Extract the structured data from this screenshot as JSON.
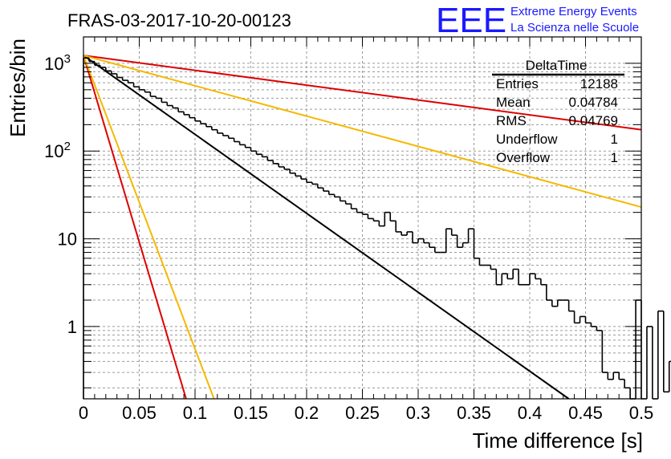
{
  "chart_data": {
    "type": "histogram",
    "title": "FRAS-03-2017-10-20-00123",
    "xlabel": "Time difference [s]",
    "ylabel": "Entries/bin",
    "xlim": [
      0,
      0.5
    ],
    "ylim": [
      0.15,
      2000
    ],
    "yscale": "log",
    "grid": true,
    "x_ticks": [
      "0",
      "0.05",
      "0.1",
      "0.15",
      "0.2",
      "0.25",
      "0.3",
      "0.35",
      "0.4",
      "0.45",
      "0.5"
    ],
    "y_ticks": [
      {
        "base": "10",
        "exp": "3",
        "value": 1000
      },
      {
        "base": "10",
        "exp": "2",
        "value": 100
      },
      {
        "base": "10",
        "exp": "",
        "value": 10
      },
      {
        "base": "1",
        "exp": "",
        "value": 1
      }
    ],
    "bin_width": 0.005,
    "histogram_values": [
      1150,
      1050,
      950,
      900,
      820,
      760,
      690,
      640,
      600,
      540,
      500,
      470,
      420,
      400,
      360,
      330,
      310,
      280,
      260,
      240,
      220,
      205,
      190,
      175,
      160,
      150,
      140,
      128,
      118,
      110,
      100,
      92,
      86,
      78,
      72,
      66,
      62,
      56,
      52,
      48,
      44,
      42,
      38,
      35,
      32,
      30,
      27,
      25,
      22,
      20,
      19,
      17,
      16,
      14,
      20,
      16,
      12,
      11,
      12,
      9,
      10,
      9,
      8,
      7,
      7,
      13,
      11,
      8,
      9,
      13,
      6,
      5,
      5,
      4.5,
      3,
      4,
      3.5,
      4.5,
      3,
      3,
      4,
      3.5,
      3,
      2,
      1.7,
      2,
      2,
      1.5,
      1.1,
      1.3,
      1.1,
      1,
      0.9,
      0.3,
      0.25,
      0.3,
      0.25,
      0.2,
      0.15,
      2,
      0.15,
      1,
      0.15,
      1.5,
      0.18,
      0.4,
      1,
      0.15,
      1,
      0.15,
      0.15
    ],
    "fit_lines": [
      {
        "color": "#000000",
        "x": [
          0,
          0.435
        ],
        "y": [
          1230,
          0.15
        ]
      },
      {
        "color": "#dd0000",
        "x": [
          0,
          0.5
        ],
        "y": [
          1230,
          175
        ]
      },
      {
        "color": "#f5b800",
        "x": [
          0,
          0.5
        ],
        "y": [
          1230,
          23
        ]
      },
      {
        "color": "#dd0000",
        "x": [
          0,
          0.092
        ],
        "y": [
          1230,
          0.15
        ]
      },
      {
        "color": "#f5b800",
        "x": [
          0,
          0.117
        ],
        "y": [
          1230,
          0.15
        ]
      }
    ],
    "stats": {
      "name": "DeltaTime",
      "rows": [
        {
          "label": "Entries",
          "value": "12188"
        },
        {
          "label": "Mean",
          "value": "0.04784"
        },
        {
          "label": "RMS",
          "value": "0.04769"
        },
        {
          "label": "Underflow",
          "value": "1"
        },
        {
          "label": "Overflow",
          "value": "1"
        }
      ]
    }
  },
  "logo": {
    "mark": "EEE",
    "line1": "Extreme Energy Events",
    "line2": "La Scienza nelle Scuole"
  }
}
